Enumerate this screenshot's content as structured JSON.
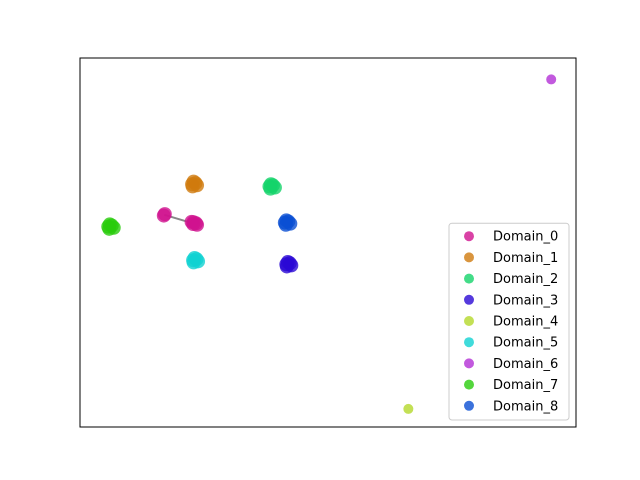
{
  "chart_data": {
    "type": "scatter",
    "title": "",
    "xlabel": "",
    "ylabel": "",
    "xlim": [
      0,
      100
    ],
    "ylim": [
      0,
      100
    ],
    "ticks_visible": false,
    "grid": false,
    "legend": {
      "placement": "lower-right"
    },
    "connectors": [
      {
        "from": [
          17.0,
          57.5
        ],
        "to": [
          22.5,
          55.3
        ],
        "color": "#888888"
      }
    ],
    "series": [
      {
        "name": "Domain_0",
        "color": "#d0138e",
        "points": [
          [
            22.8,
            55.0
          ],
          [
            23.4,
            55.2
          ],
          [
            22.5,
            55.6
          ],
          [
            23.6,
            54.8
          ],
          [
            22.9,
            55.5
          ],
          [
            17.1,
            57.7
          ],
          [
            16.9,
            57.3
          ]
        ]
      },
      {
        "name": "Domain_1",
        "color": "#cf7a0e",
        "points": [
          [
            22.6,
            65.8
          ],
          [
            23.3,
            66.1
          ],
          [
            22.9,
            66.5
          ],
          [
            23.6,
            65.5
          ],
          [
            22.7,
            65.2
          ]
        ]
      },
      {
        "name": "Domain_2",
        "color": "#14d36a",
        "points": [
          [
            38.2,
            65.2
          ],
          [
            38.9,
            65.5
          ],
          [
            38.5,
            65.8
          ],
          [
            39.3,
            64.9
          ],
          [
            38.4,
            64.6
          ]
        ]
      },
      {
        "name": "Domain_3",
        "color": "#2a09d4",
        "points": [
          [
            41.6,
            44.1
          ],
          [
            42.3,
            44.4
          ],
          [
            41.9,
            44.7
          ],
          [
            42.6,
            43.8
          ],
          [
            41.7,
            43.5
          ]
        ]
      },
      {
        "name": "Domain_4",
        "color": "#b4d82a",
        "points": [
          [
            66.2,
            4.9
          ]
        ]
      },
      {
        "name": "Domain_5",
        "color": "#10d2d2",
        "points": [
          [
            22.8,
            45.2
          ],
          [
            23.5,
            45.5
          ],
          [
            23.1,
            45.8
          ],
          [
            23.8,
            44.9
          ],
          [
            22.9,
            44.6
          ]
        ]
      },
      {
        "name": "Domain_6",
        "color": "#b32fd6",
        "points": [
          [
            95.0,
            94.2
          ]
        ]
      },
      {
        "name": "Domain_7",
        "color": "#29cc0c",
        "points": [
          [
            5.7,
            54.3
          ],
          [
            6.4,
            54.6
          ],
          [
            6.0,
            54.9
          ],
          [
            6.8,
            54.0
          ],
          [
            5.9,
            53.7
          ]
        ]
      },
      {
        "name": "Domain_8",
        "color": "#0a4fd3",
        "points": [
          [
            41.3,
            55.4
          ],
          [
            42.0,
            55.7
          ],
          [
            41.6,
            56.0
          ],
          [
            42.4,
            55.1
          ],
          [
            41.5,
            54.8
          ]
        ]
      }
    ]
  }
}
